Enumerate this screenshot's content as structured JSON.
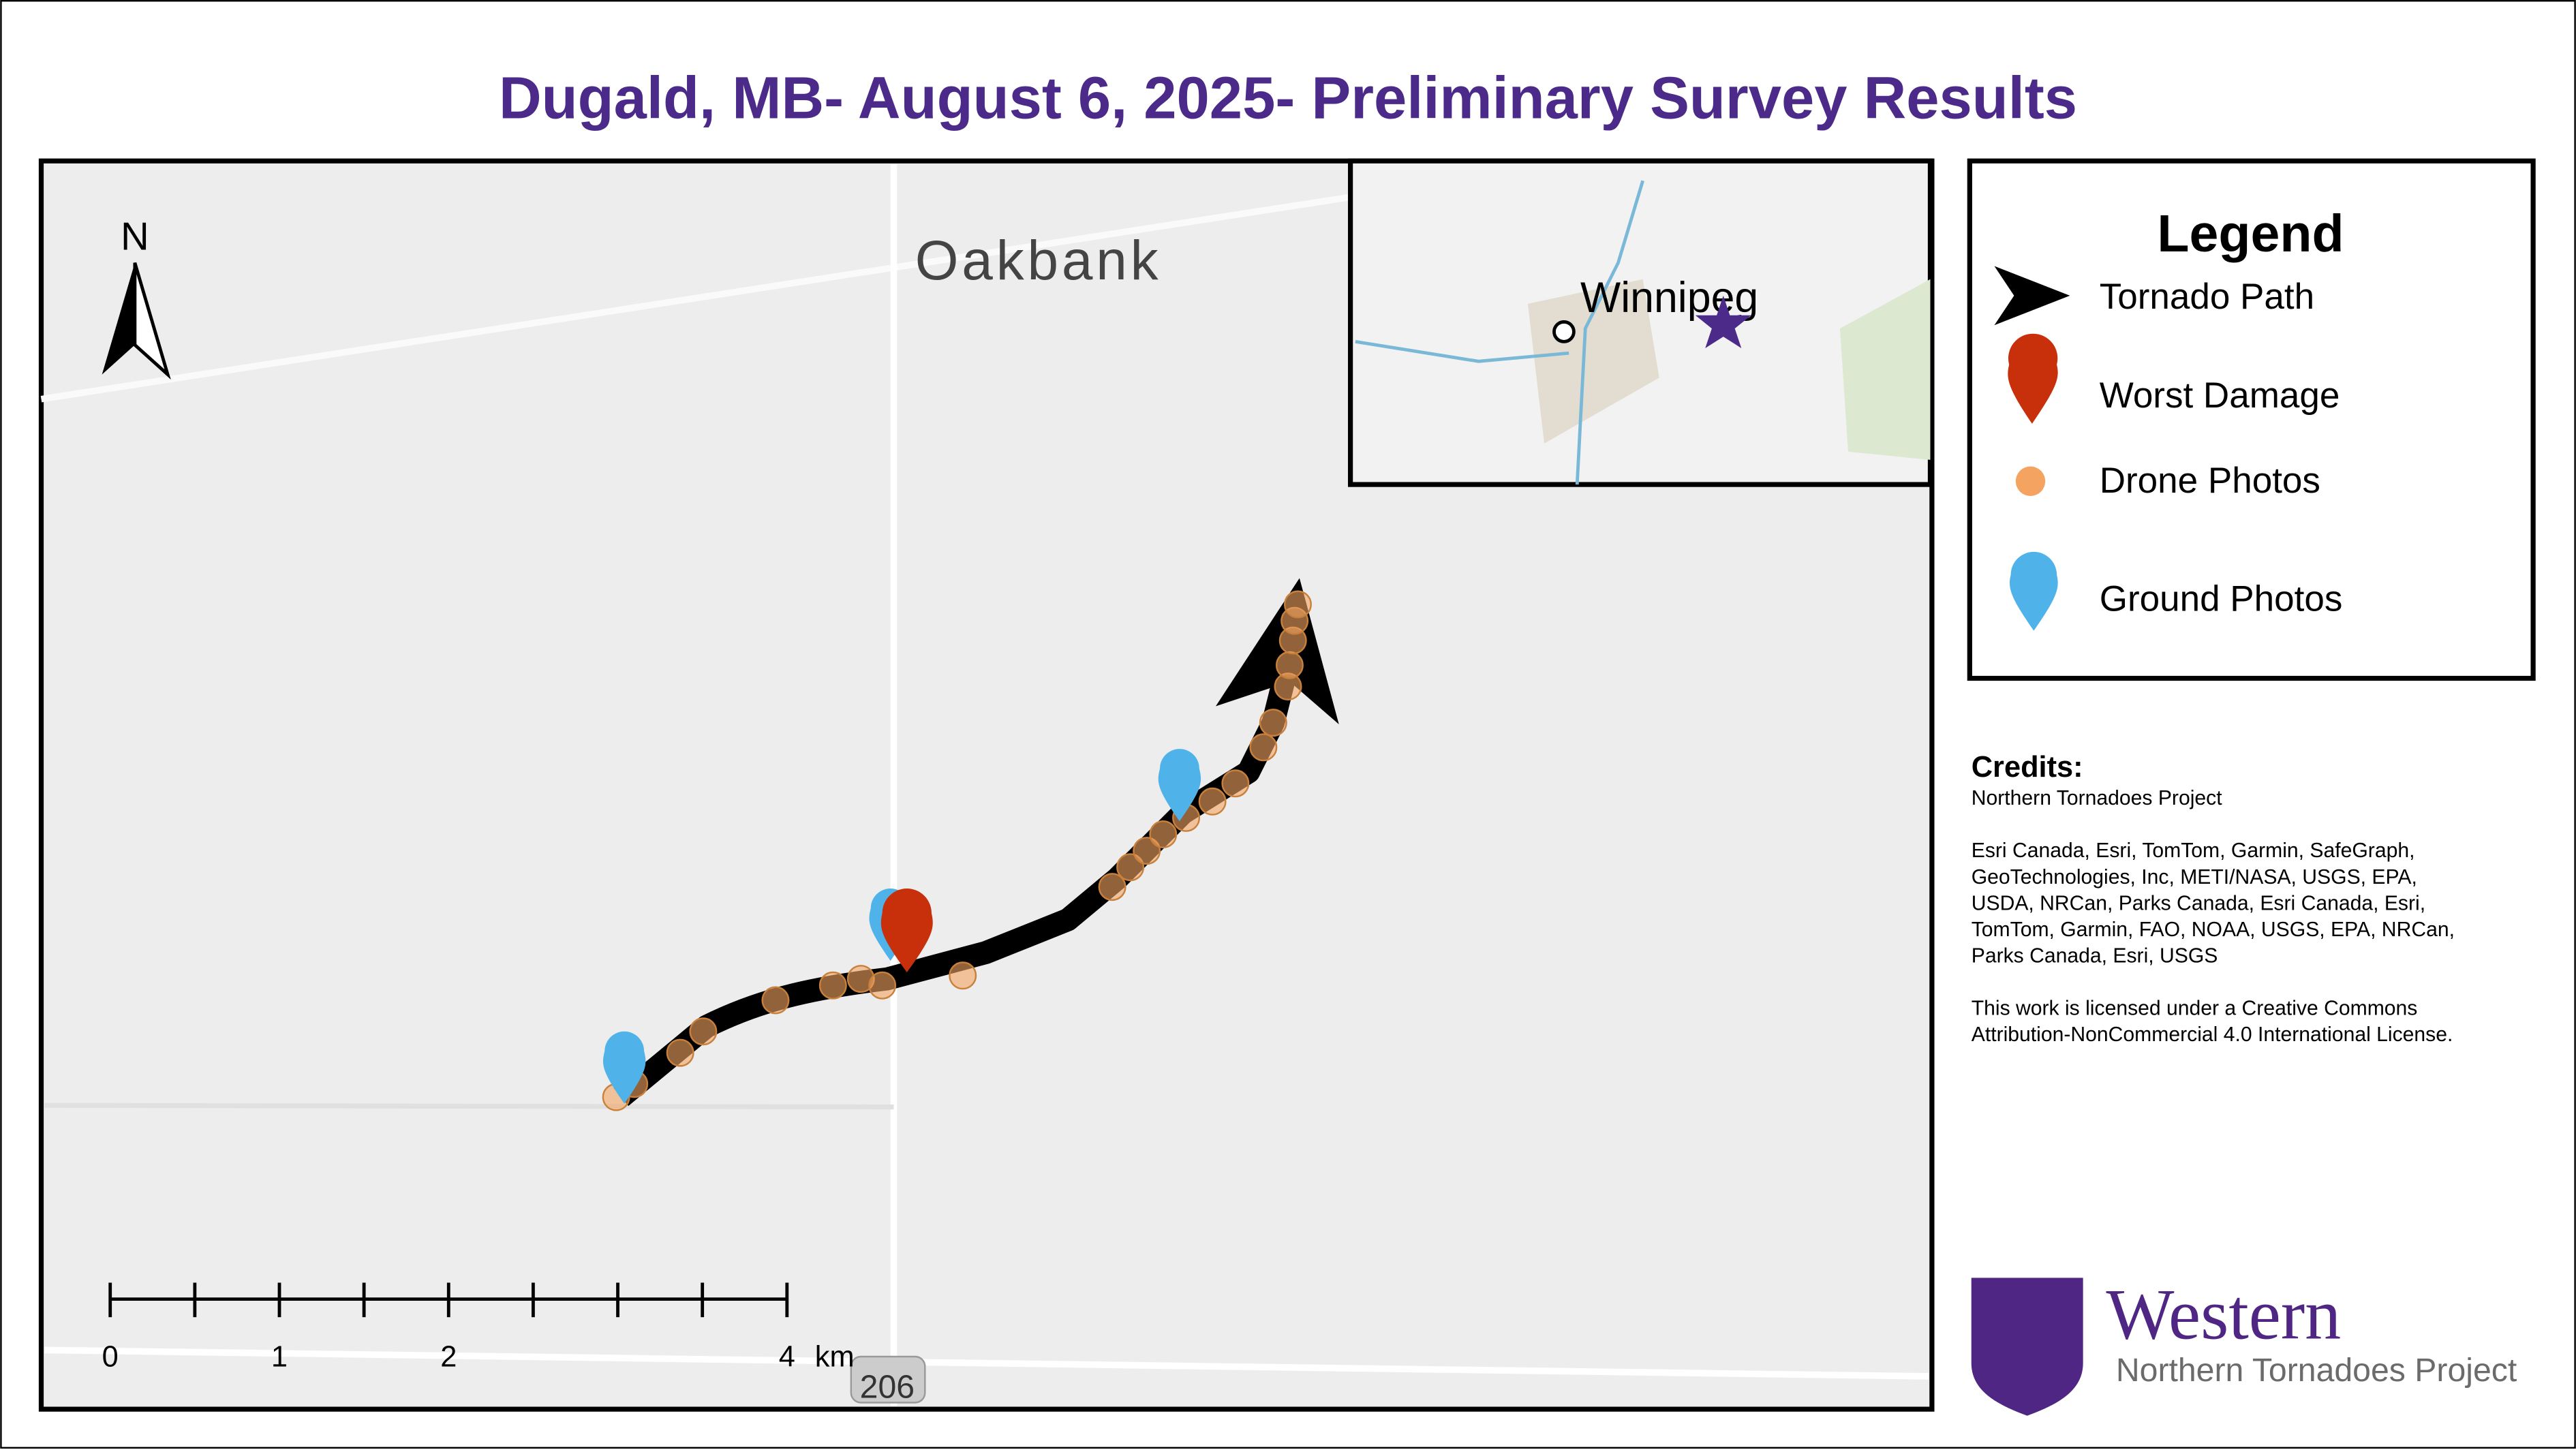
{
  "title": "Dugald, MB- August 6, 2025- Preliminary Survey Results",
  "map": {
    "north_label": "N",
    "town_label": "Oakbank",
    "inset_label": "Winnipeg",
    "road_label": "206",
    "scale_bar": {
      "labels": [
        0,
        1,
        2,
        4
      ],
      "unit": "km"
    }
  },
  "legend": {
    "title": "Legend",
    "items": [
      "Tornado Path",
      "Worst Damage",
      "Drone Photos",
      "Ground Photos"
    ]
  },
  "credits": {
    "heading": "Credits:",
    "lines": [
      "Northern Tornadoes Project",
      "",
      "Esri Canada, Esri, TomTom, Garmin, SafeGraph,",
      "GeoTechnologies, Inc, METI/NASA, USGS, EPA,",
      "USDA, NRCan, Parks Canada, Esri Canada, Esri,",
      "TomTom, Garmin, FAO, NOAA, USGS, EPA, NRCan,",
      "Parks Canada, Esri, USGS",
      "",
      "This work is licensed under a Creative Commons",
      "Attribution-NonCommercial 4.0 International License."
    ]
  },
  "logo": {
    "name": "Western",
    "subtitle": "Northern Tornadoes Project"
  }
}
